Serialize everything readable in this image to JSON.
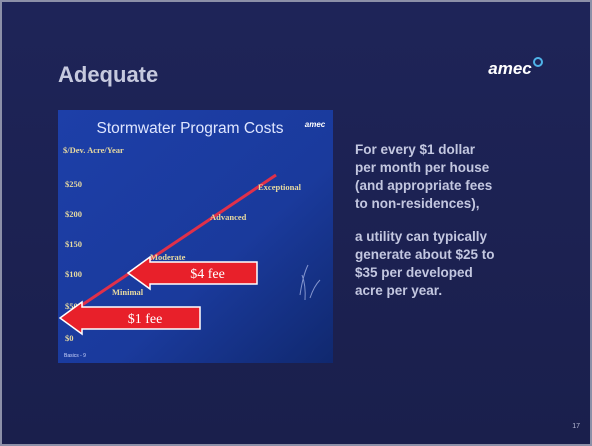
{
  "header": {
    "title": "Adequate",
    "logo": "amec"
  },
  "figure": {
    "title": "Stormwater Program Costs",
    "logo": "amec",
    "axis_label": "$/Dev. Acre/Year",
    "ticks": [
      "$250",
      "$200",
      "$150",
      "$100",
      "$50",
      "$0"
    ],
    "levels": [
      "Exceptional",
      "Advanced",
      "Moderate",
      "Minimal"
    ],
    "arrows": [
      "$4 fee",
      "$1 fee"
    ],
    "footnote": "Basics - 9"
  },
  "body": {
    "paragraphs": [
      [
        "For every $1 dollar",
        "per month per house",
        "(and appropriate fees",
        "to non-residences),"
      ],
      [
        "a utility can typically",
        "generate about $25 to",
        "$35 per developed",
        "acre per year."
      ]
    ]
  },
  "page_number": "17"
}
